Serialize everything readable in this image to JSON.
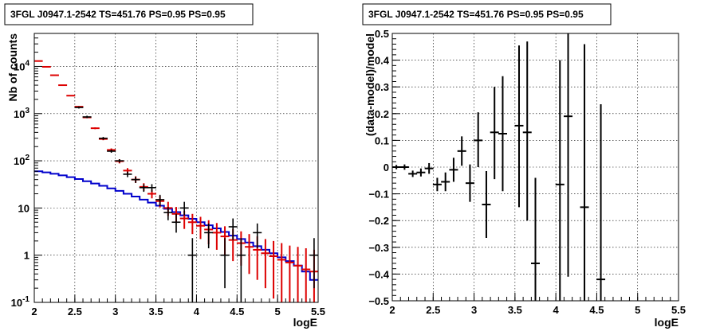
{
  "chart_data": [
    {
      "type": "scatter",
      "title": "3FGL J0947.1-2542 TS=451.76 PS=0.95 PS=0.95",
      "xlabel": "logE",
      "ylabel": "Nb of counts",
      "xlim": [
        2,
        5.5
      ],
      "ylim": [
        0.1,
        50000
      ],
      "yscale": "log",
      "grid": true,
      "x_ticks": [
        2,
        2.5,
        3,
        3.5,
        4,
        4.5,
        5,
        5.5
      ],
      "x_tick_labels": [
        "2",
        "2.5",
        "3",
        "3.5",
        "4",
        "4.5",
        "5",
        "5.5"
      ],
      "y_tick_labels": [
        "10^-1",
        "1",
        "10",
        "10^2",
        "10^3",
        "10^4"
      ],
      "series": [
        {
          "role": "data",
          "color": "#000000",
          "points": [
            {
              "x": 2.55,
              "y": 1350,
              "lo": 1280,
              "hi": 1420
            },
            {
              "x": 2.65,
              "y": 850,
              "lo": 800,
              "hi": 900
            },
            {
              "x": 2.85,
              "y": 300,
              "lo": 280,
              "hi": 320
            },
            {
              "x": 2.95,
              "y": 160,
              "lo": 148,
              "hi": 172
            },
            {
              "x": 3.05,
              "y": 100,
              "lo": 92,
              "hi": 108
            },
            {
              "x": 3.15,
              "y": 52,
              "lo": 45,
              "hi": 59
            },
            {
              "x": 3.25,
              "y": 40,
              "lo": 34,
              "hi": 46
            },
            {
              "x": 3.35,
              "y": 27,
              "lo": 22,
              "hi": 32
            },
            {
              "x": 3.45,
              "y": 27,
              "lo": 22,
              "hi": 32
            },
            {
              "x": 3.55,
              "y": 15,
              "lo": 11,
              "hi": 19
            },
            {
              "x": 3.65,
              "y": 8,
              "lo": 5.5,
              "hi": 10.5
            },
            {
              "x": 3.75,
              "y": 5,
              "lo": 3,
              "hi": 7.5
            },
            {
              "x": 3.85,
              "y": 10,
              "lo": 7,
              "hi": 13.5
            },
            {
              "x": 3.95,
              "y": 1,
              "lo": 0.1,
              "hi": 2.3
            },
            {
              "x": 4.15,
              "y": 3,
              "lo": 1.4,
              "hi": 4.7
            },
            {
              "x": 4.35,
              "y": 1,
              "lo": 0.2,
              "hi": 2.3
            },
            {
              "x": 4.45,
              "y": 4,
              "lo": 2.1,
              "hi": 6
            },
            {
              "x": 4.55,
              "y": 1,
              "lo": 0.1,
              "hi": 2.3
            },
            {
              "x": 4.75,
              "y": 3,
              "lo": 1.4,
              "hi": 4.7
            },
            {
              "x": 5.45,
              "y": 1,
              "lo": 0.2,
              "hi": 2.3
            }
          ]
        },
        {
          "role": "model-total",
          "color": "#dd0000",
          "points": [
            {
              "x": 2.05,
              "y": 13000,
              "lo": 12800,
              "hi": 13200
            },
            {
              "x": 2.15,
              "y": 9800,
              "lo": 9700,
              "hi": 9900
            },
            {
              "x": 2.25,
              "y": 6500,
              "lo": 6420,
              "hi": 6580
            },
            {
              "x": 2.35,
              "y": 4000,
              "lo": 3940,
              "hi": 4060
            },
            {
              "x": 2.45,
              "y": 2400,
              "lo": 2350,
              "hi": 2450
            },
            {
              "x": 2.55,
              "y": 1400,
              "lo": 1360,
              "hi": 1440
            },
            {
              "x": 2.65,
              "y": 830,
              "lo": 800,
              "hi": 860
            },
            {
              "x": 2.75,
              "y": 490,
              "lo": 468,
              "hi": 512
            },
            {
              "x": 2.85,
              "y": 290,
              "lo": 273,
              "hi": 307
            },
            {
              "x": 2.95,
              "y": 170,
              "lo": 157,
              "hi": 183
            },
            {
              "x": 3.05,
              "y": 98,
              "lo": 88,
              "hi": 108
            },
            {
              "x": 3.15,
              "y": 62,
              "lo": 54,
              "hi": 70
            },
            {
              "x": 3.25,
              "y": 40,
              "lo": 34,
              "hi": 47
            },
            {
              "x": 3.35,
              "y": 28,
              "lo": 23,
              "hi": 33.5
            },
            {
              "x": 3.45,
              "y": 20,
              "lo": 16,
              "hi": 24.5
            },
            {
              "x": 3.55,
              "y": 14,
              "lo": 10.3,
              "hi": 18
            },
            {
              "x": 3.65,
              "y": 10,
              "lo": 6.8,
              "hi": 13.5
            },
            {
              "x": 3.75,
              "y": 7.5,
              "lo": 4.8,
              "hi": 10.5
            },
            {
              "x": 3.85,
              "y": 6,
              "lo": 3.6,
              "hi": 8.7
            },
            {
              "x": 3.95,
              "y": 5,
              "lo": 2.8,
              "hi": 7.5
            },
            {
              "x": 4.05,
              "y": 4.2,
              "lo": 2.2,
              "hi": 6.5
            },
            {
              "x": 4.15,
              "y": 3.5,
              "lo": 1.7,
              "hi": 5.5
            },
            {
              "x": 4.25,
              "y": 3,
              "lo": 1.3,
              "hi": 4.8
            },
            {
              "x": 4.35,
              "y": 2.5,
              "lo": 1,
              "hi": 4.1
            },
            {
              "x": 4.45,
              "y": 2.1,
              "lo": 0.75,
              "hi": 3.6
            },
            {
              "x": 4.55,
              "y": 1.8,
              "lo": 0.6,
              "hi": 3.2
            },
            {
              "x": 4.65,
              "y": 1.5,
              "lo": 0.4,
              "hi": 2.8
            },
            {
              "x": 4.75,
              "y": 1.3,
              "lo": 0.3,
              "hi": 2.5
            },
            {
              "x": 4.85,
              "y": 1.1,
              "lo": 0.2,
              "hi": 2.2
            },
            {
              "x": 4.95,
              "y": 0.95,
              "lo": 0.12,
              "hi": 2
            },
            {
              "x": 5.05,
              "y": 0.8,
              "lo": 0.1,
              "hi": 1.8
            },
            {
              "x": 5.15,
              "y": 0.7,
              "lo": 0.1,
              "hi": 1.6
            },
            {
              "x": 5.25,
              "y": 0.6,
              "lo": 0.1,
              "hi": 1.5
            },
            {
              "x": 5.35,
              "y": 0.5,
              "lo": 0.1,
              "hi": 1.4
            },
            {
              "x": 5.45,
              "y": 0.45,
              "lo": 0.1,
              "hi": 1.3
            }
          ]
        },
        {
          "role": "model-component",
          "color": "#0000cc",
          "step_edges": [
            2,
            2.1,
            2.2,
            2.3,
            2.4,
            2.5,
            2.6,
            2.7,
            2.8,
            2.9,
            3.0,
            3.1,
            3.2,
            3.3,
            3.4,
            3.5,
            3.6,
            3.7,
            3.8,
            3.9,
            4.0,
            4.1,
            4.2,
            4.3,
            4.4,
            4.5,
            4.6,
            4.7,
            4.8,
            4.9,
            5.0,
            5.1,
            5.2,
            5.3,
            5.4,
            5.5
          ],
          "values": [
            60,
            57,
            53,
            49,
            45,
            41,
            37,
            33,
            29.5,
            26,
            23,
            20,
            17.5,
            15,
            13,
            11.2,
            9.6,
            8.2,
            7,
            5.9,
            5,
            4.3,
            3.7,
            3.1,
            2.6,
            2.2,
            1.85,
            1.55,
            1.3,
            1.1,
            0.9,
            0.75,
            0.6,
            0.45,
            0.3
          ]
        }
      ]
    },
    {
      "type": "scatter",
      "title": "3FGL J0947.1-2542 TS=451.76 PS=0.95 PS=0.95",
      "xlabel": "logE",
      "ylabel": "(data-model)/model",
      "xlim": [
        2,
        5.5
      ],
      "ylim": [
        -0.5,
        0.5
      ],
      "grid": true,
      "x_ticks": [
        2,
        2.5,
        3,
        3.5,
        4,
        4.5,
        5,
        5.5
      ],
      "x_tick_labels": [
        "2",
        "2.5",
        "3",
        "3.5",
        "4",
        "4.5",
        "5",
        "5.5"
      ],
      "y_ticks": [
        -0.5,
        -0.4,
        -0.3,
        -0.2,
        -0.1,
        0,
        0.1,
        0.2,
        0.3,
        0.4,
        0.5
      ],
      "y_tick_labels": [
        "−0.5",
        "−0.4",
        "−0.3",
        "−0.2",
        "−0.1",
        "0",
        "0.1",
        "0.2",
        "0.3",
        "0.4",
        "0.5"
      ],
      "series": [
        {
          "role": "residuals",
          "color": "#000000",
          "points": [
            {
              "x": 2.05,
              "y": 0.0,
              "lo": -0.008,
              "hi": 0.008
            },
            {
              "x": 2.15,
              "y": 0.0,
              "lo": -0.01,
              "hi": 0.01
            },
            {
              "x": 2.25,
              "y": -0.025,
              "lo": -0.037,
              "hi": -0.013
            },
            {
              "x": 2.35,
              "y": -0.02,
              "lo": -0.035,
              "hi": -0.005
            },
            {
              "x": 2.45,
              "y": -0.005,
              "lo": -0.025,
              "hi": 0.015
            },
            {
              "x": 2.55,
              "y": -0.065,
              "lo": -0.09,
              "hi": -0.04
            },
            {
              "x": 2.65,
              "y": -0.055,
              "lo": -0.09,
              "hi": -0.02
            },
            {
              "x": 2.75,
              "y": -0.01,
              "lo": -0.055,
              "hi": 0.035
            },
            {
              "x": 2.85,
              "y": 0.06,
              "lo": 0.005,
              "hi": 0.115
            },
            {
              "x": 2.95,
              "y": -0.06,
              "lo": -0.13,
              "hi": 0.01
            },
            {
              "x": 3.05,
              "y": 0.1,
              "lo": 0.0,
              "hi": 0.205
            },
            {
              "x": 3.15,
              "y": -0.14,
              "lo": -0.265,
              "hi": -0.015
            },
            {
              "x": 3.25,
              "y": 0.13,
              "lo": -0.045,
              "hi": 0.3
            },
            {
              "x": 3.35,
              "y": 0.125,
              "lo": -0.09,
              "hi": 0.34
            },
            {
              "x": 3.55,
              "y": 0.155,
              "lo": -0.15,
              "hi": 0.455
            },
            {
              "x": 3.65,
              "y": 0.13,
              "lo": -0.2,
              "hi": 0.47
            },
            {
              "x": 3.75,
              "y": -0.36,
              "lo": -0.5,
              "hi": -0.04
            },
            {
              "x": 4.05,
              "y": -0.065,
              "lo": -0.5,
              "hi": 0.4
            },
            {
              "x": 4.15,
              "y": 0.19,
              "lo": -0.41,
              "hi": 0.5
            },
            {
              "x": 4.35,
              "y": -0.15,
              "lo": -0.5,
              "hi": 0.46
            },
            {
              "x": 4.55,
              "y": -0.42,
              "lo": -0.5,
              "hi": 0.235
            }
          ]
        }
      ]
    }
  ]
}
